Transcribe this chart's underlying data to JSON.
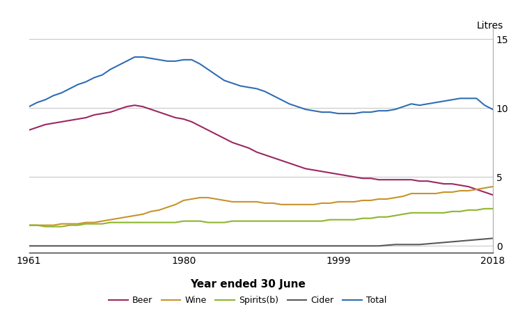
{
  "years": [
    1961,
    1962,
    1963,
    1964,
    1965,
    1966,
    1967,
    1968,
    1969,
    1970,
    1971,
    1972,
    1973,
    1974,
    1975,
    1976,
    1977,
    1978,
    1979,
    1980,
    1981,
    1982,
    1983,
    1984,
    1985,
    1986,
    1987,
    1988,
    1989,
    1990,
    1991,
    1992,
    1993,
    1994,
    1995,
    1996,
    1997,
    1998,
    1999,
    2000,
    2001,
    2002,
    2003,
    2004,
    2005,
    2006,
    2007,
    2008,
    2009,
    2010,
    2011,
    2012,
    2013,
    2014,
    2015,
    2016,
    2017,
    2018
  ],
  "beer": [
    8.4,
    8.6,
    8.8,
    8.9,
    9.0,
    9.1,
    9.2,
    9.3,
    9.5,
    9.6,
    9.7,
    9.9,
    10.1,
    10.2,
    10.1,
    9.9,
    9.7,
    9.5,
    9.3,
    9.2,
    9.0,
    8.7,
    8.4,
    8.1,
    7.8,
    7.5,
    7.3,
    7.1,
    6.8,
    6.6,
    6.4,
    6.2,
    6.0,
    5.8,
    5.6,
    5.5,
    5.4,
    5.3,
    5.2,
    5.1,
    5.0,
    4.9,
    4.9,
    4.8,
    4.8,
    4.8,
    4.8,
    4.8,
    4.7,
    4.7,
    4.6,
    4.5,
    4.5,
    4.4,
    4.3,
    4.1,
    3.9,
    3.7
  ],
  "wine": [
    1.5,
    1.5,
    1.5,
    1.5,
    1.6,
    1.6,
    1.6,
    1.7,
    1.7,
    1.8,
    1.9,
    2.0,
    2.1,
    2.2,
    2.3,
    2.5,
    2.6,
    2.8,
    3.0,
    3.3,
    3.4,
    3.5,
    3.5,
    3.4,
    3.3,
    3.2,
    3.2,
    3.2,
    3.2,
    3.1,
    3.1,
    3.0,
    3.0,
    3.0,
    3.0,
    3.0,
    3.1,
    3.1,
    3.2,
    3.2,
    3.2,
    3.3,
    3.3,
    3.4,
    3.4,
    3.5,
    3.6,
    3.8,
    3.8,
    3.8,
    3.8,
    3.9,
    3.9,
    4.0,
    4.0,
    4.1,
    4.2,
    4.3
  ],
  "spirits": [
    1.5,
    1.5,
    1.4,
    1.4,
    1.4,
    1.5,
    1.5,
    1.6,
    1.6,
    1.6,
    1.7,
    1.7,
    1.7,
    1.7,
    1.7,
    1.7,
    1.7,
    1.7,
    1.7,
    1.8,
    1.8,
    1.8,
    1.7,
    1.7,
    1.7,
    1.8,
    1.8,
    1.8,
    1.8,
    1.8,
    1.8,
    1.8,
    1.8,
    1.8,
    1.8,
    1.8,
    1.8,
    1.9,
    1.9,
    1.9,
    1.9,
    2.0,
    2.0,
    2.1,
    2.1,
    2.2,
    2.3,
    2.4,
    2.4,
    2.4,
    2.4,
    2.4,
    2.5,
    2.5,
    2.6,
    2.6,
    2.7,
    2.7
  ],
  "cider": [
    0.0,
    0.0,
    0.0,
    0.0,
    0.0,
    0.0,
    0.0,
    0.0,
    0.0,
    0.0,
    0.0,
    0.0,
    0.0,
    0.0,
    0.0,
    0.0,
    0.0,
    0.0,
    0.0,
    0.0,
    0.0,
    0.0,
    0.0,
    0.0,
    0.0,
    0.0,
    0.0,
    0.0,
    0.0,
    0.0,
    0.0,
    0.0,
    0.0,
    0.0,
    0.0,
    0.0,
    0.0,
    0.0,
    0.0,
    0.0,
    0.0,
    0.0,
    0.0,
    0.0,
    0.05,
    0.1,
    0.1,
    0.1,
    0.1,
    0.15,
    0.2,
    0.25,
    0.3,
    0.35,
    0.4,
    0.45,
    0.5,
    0.55
  ],
  "total": [
    10.1,
    10.4,
    10.6,
    10.9,
    11.1,
    11.4,
    11.7,
    11.9,
    12.2,
    12.4,
    12.8,
    13.1,
    13.4,
    13.7,
    13.7,
    13.6,
    13.5,
    13.4,
    13.4,
    13.5,
    13.5,
    13.2,
    12.8,
    12.4,
    12.0,
    11.8,
    11.6,
    11.5,
    11.4,
    11.2,
    10.9,
    10.6,
    10.3,
    10.1,
    9.9,
    9.8,
    9.7,
    9.7,
    9.6,
    9.6,
    9.6,
    9.7,
    9.7,
    9.8,
    9.8,
    9.9,
    10.1,
    10.3,
    10.2,
    10.3,
    10.4,
    10.5,
    10.6,
    10.7,
    10.7,
    10.7,
    10.2,
    9.9
  ],
  "beer_color": "#9B2762",
  "wine_color": "#C8922A",
  "spirits_color": "#8DB52A",
  "cider_color": "#595959",
  "total_color": "#2E6DB4",
  "xlabel": "Year ended 30 June",
  "ylabel": "Litres",
  "yticks": [
    0,
    5,
    10,
    15
  ],
  "xticks_labels": [
    "1961",
    "1980",
    "1999",
    "2018"
  ],
  "xticks_vals": [
    1961,
    1980,
    1999,
    2018
  ],
  "ylim": [
    -0.5,
    16.0
  ],
  "xlim": [
    1961,
    2018
  ],
  "legend_labels": [
    "Beer",
    "Wine",
    "Spirits(b)",
    "Cider",
    "Total"
  ],
  "background_color": "#ffffff",
  "grid_color": "#c8c8c8"
}
